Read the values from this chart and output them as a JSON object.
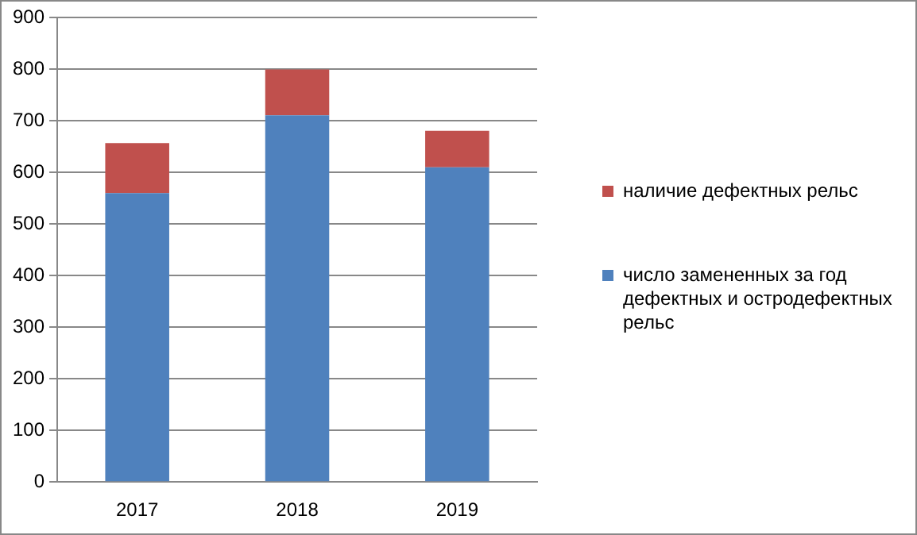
{
  "chart_data": {
    "type": "bar",
    "stacked": true,
    "categories": [
      "2017",
      "2018",
      "2019"
    ],
    "series": [
      {
        "name": "число замененных за год дефектных и остродефектных рельс",
        "color": "#4f81bd",
        "values": [
          560,
          711,
          610
        ]
      },
      {
        "name": "наличие дефектных рельс",
        "color": "#c0504d",
        "values": [
          97,
          89,
          71
        ]
      }
    ],
    "ylim": [
      0,
      900
    ],
    "yticks": [
      0,
      100,
      200,
      300,
      400,
      500,
      600,
      700,
      800,
      900
    ],
    "grid": "y",
    "legend": "right"
  }
}
